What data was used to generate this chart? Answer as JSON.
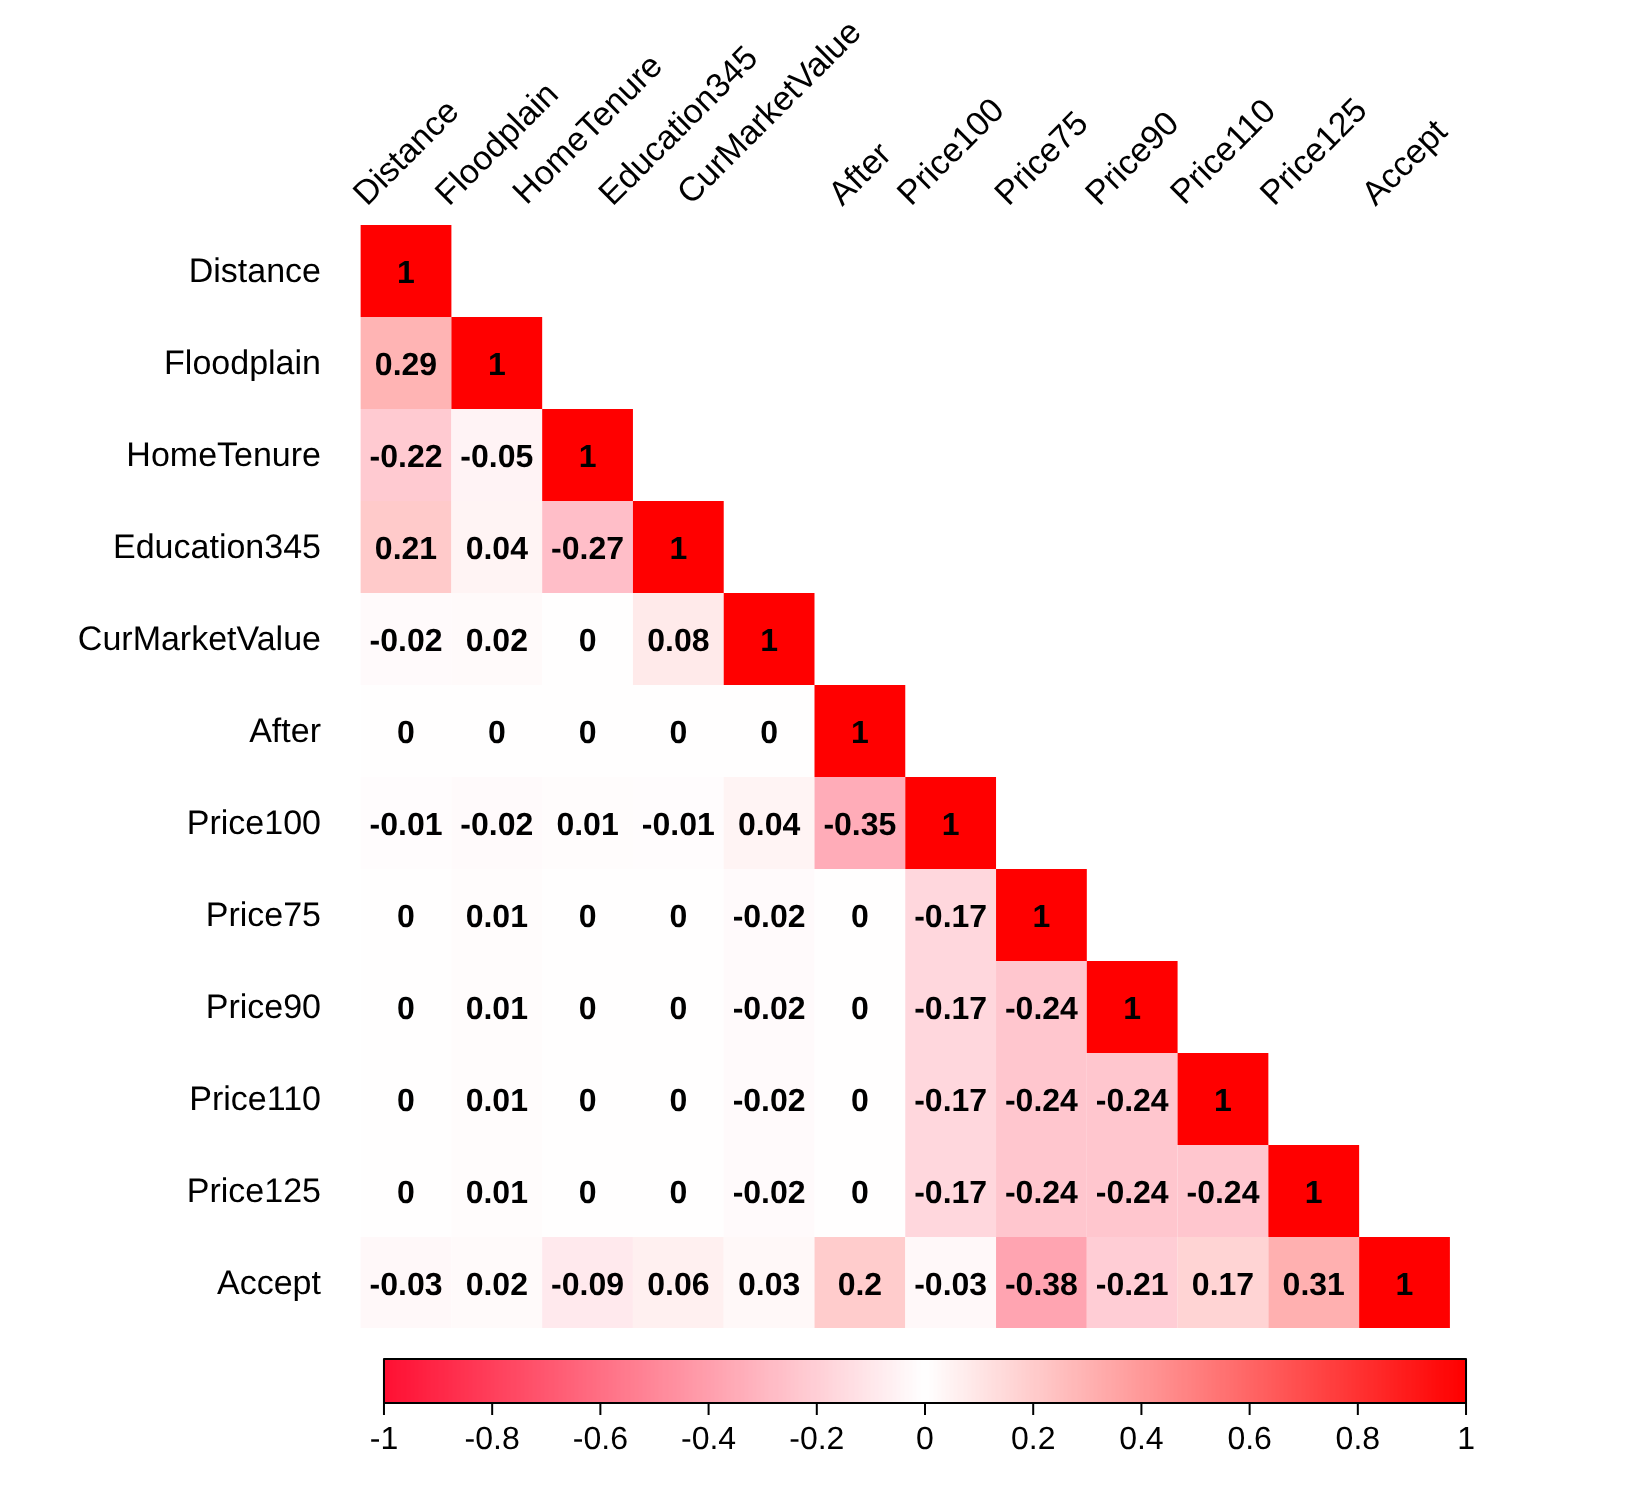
{
  "chart_data": {
    "type": "heatmap",
    "categories": [
      "Distance",
      "Floodplain",
      "HomeTenure",
      "Education345",
      "CurMarketValue",
      "After",
      "Price100",
      "Price75",
      "Price90",
      "Price110",
      "Price125",
      "Accept"
    ],
    "y_categories": [
      "Distance",
      "Floodplain",
      "HomeTenure",
      "Education345",
      "CurMarketValue",
      "After",
      "Price100",
      "Price75",
      "Price90",
      "Price110",
      "Price125",
      "Accept"
    ],
    "cells": [
      [
        1,
        null,
        null,
        null,
        null,
        null,
        null,
        null,
        null,
        null,
        null,
        null
      ],
      [
        0.29,
        1,
        null,
        null,
        null,
        null,
        null,
        null,
        null,
        null,
        null,
        null
      ],
      [
        -0.22,
        -0.05,
        1,
        null,
        null,
        null,
        null,
        null,
        null,
        null,
        null,
        null
      ],
      [
        0.21,
        0.04,
        -0.27,
        1,
        null,
        null,
        null,
        null,
        null,
        null,
        null,
        null
      ],
      [
        -0.02,
        0.02,
        0,
        0.08,
        1,
        null,
        null,
        null,
        null,
        null,
        null,
        null
      ],
      [
        0,
        0,
        0,
        0,
        0,
        1,
        null,
        null,
        null,
        null,
        null,
        null
      ],
      [
        -0.01,
        -0.02,
        0.01,
        -0.01,
        0.04,
        -0.35,
        1,
        null,
        null,
        null,
        null,
        null
      ],
      [
        0,
        0.01,
        0,
        0,
        -0.02,
        0,
        -0.17,
        1,
        null,
        null,
        null,
        null
      ],
      [
        0,
        0.01,
        0,
        0,
        -0.02,
        0,
        -0.17,
        -0.24,
        1,
        null,
        null,
        null
      ],
      [
        0,
        0.01,
        0,
        0,
        -0.02,
        0,
        -0.17,
        -0.24,
        -0.24,
        1,
        null,
        null
      ],
      [
        0,
        0.01,
        0,
        0,
        -0.02,
        0,
        -0.17,
        -0.24,
        -0.24,
        -0.24,
        1,
        null
      ],
      [
        -0.03,
        0.02,
        -0.09,
        0.06,
        0.03,
        0.2,
        -0.03,
        -0.38,
        -0.21,
        0.17,
        0.31,
        1
      ]
    ],
    "clim": [
      -1,
      1
    ],
    "cticks": [
      -1,
      -0.8,
      -0.6,
      -0.4,
      -0.2,
      0,
      0.2,
      0.4,
      0.6,
      0.8,
      1
    ],
    "colors": [
      "#ff1033",
      "#ffffff",
      "#ff0000"
    ],
    "data_labels": true
  }
}
